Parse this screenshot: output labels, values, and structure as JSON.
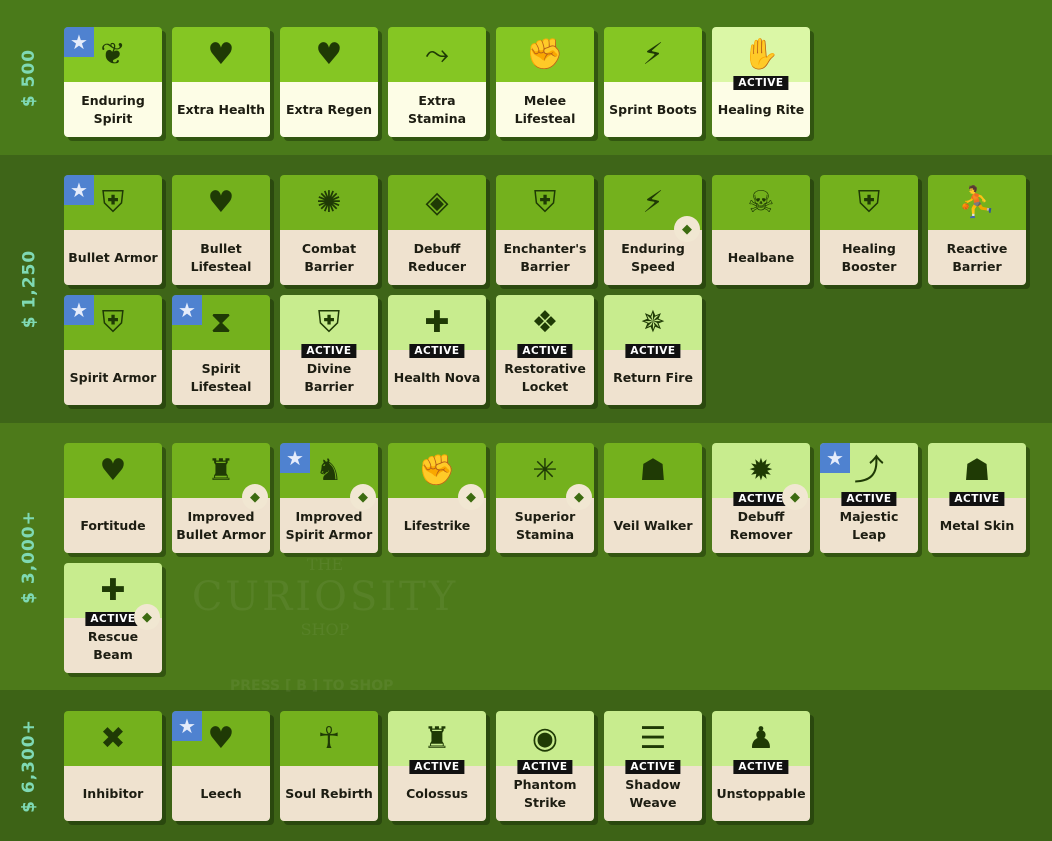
{
  "watermark": {
    "line1": "THE",
    "line2": "CURIOSITY",
    "line3": "SHOP",
    "hint": "PRESS [ B ] TO SHOP"
  },
  "active_label": "ACTIVE",
  "colors": {
    "tier_text": "#7fd9b4",
    "card_green": "#74b11d",
    "card_active": "#c8ec8e",
    "star_bg": "#4f82d0"
  },
  "tiers": [
    {
      "price": "$ 500",
      "bg": "#4a7a1a",
      "items": [
        {
          "name": "Enduring Spirit",
          "icon": "heart-wings-icon",
          "glyph": "❦",
          "star": true
        },
        {
          "name": "Extra Health",
          "icon": "heart-icon",
          "glyph": "♥"
        },
        {
          "name": "Extra Regen",
          "icon": "heart-regen-icon",
          "glyph": "♥"
        },
        {
          "name": "Extra Stamina",
          "icon": "dash-icon",
          "glyph": "⤳"
        },
        {
          "name": "Melee Lifesteal",
          "icon": "fist-icon",
          "glyph": "✊"
        },
        {
          "name": "Sprint Boots",
          "icon": "boot-icon",
          "glyph": "⚡"
        },
        {
          "name": "Healing Rite",
          "icon": "healing-hand-icon",
          "glyph": "✋",
          "active": true
        }
      ]
    },
    {
      "price": "$ 1,250",
      "bg": "#3e6518",
      "items": [
        {
          "name": "Bullet Armor",
          "icon": "bullet-shield-icon",
          "glyph": "⛨",
          "star": true
        },
        {
          "name": "Bullet Lifesteal",
          "icon": "bullet-heart-icon",
          "glyph": "♥"
        },
        {
          "name": "Combat Barrier",
          "icon": "barrier-icon",
          "glyph": "✺"
        },
        {
          "name": "Debuff Reducer",
          "icon": "diamond-arrow-icon",
          "glyph": "◈"
        },
        {
          "name": "Enchanter's Barrier",
          "icon": "lightning-shield-icon",
          "glyph": "⛨"
        },
        {
          "name": "Enduring Speed",
          "icon": "boot-icon",
          "glyph": "⚡",
          "sub": "pin-icon"
        },
        {
          "name": "Healbane",
          "icon": "skull-icon",
          "glyph": "☠"
        },
        {
          "name": "Healing Booster",
          "icon": "plus-shield-icon",
          "glyph": "⛨"
        },
        {
          "name": "Reactive Barrier",
          "icon": "runner-shield-icon",
          "glyph": "⛹"
        },
        {
          "name": "Spirit Armor",
          "icon": "spirit-shield-icon",
          "glyph": "⛨",
          "star": true
        },
        {
          "name": "Spirit Lifesteal",
          "icon": "hourglass-heart-icon",
          "glyph": "⧗",
          "star": true
        },
        {
          "name": "Divine Barrier",
          "icon": "horned-shield-icon",
          "glyph": "⛨",
          "active": true
        },
        {
          "name": "Health Nova",
          "icon": "nova-icon",
          "glyph": "✚",
          "active": true
        },
        {
          "name": "Restorative Locket",
          "icon": "locket-icon",
          "glyph": "❖",
          "active": true
        },
        {
          "name": "Return Fire",
          "icon": "bullets-spread-icon",
          "glyph": "✵",
          "active": true
        }
      ]
    },
    {
      "price": "$ 3,000+",
      "bg": "#4d7a1a",
      "items": [
        {
          "name": "Fortitude",
          "icon": "sparkle-heart-icon",
          "glyph": "♥"
        },
        {
          "name": "Improved Bullet Armor",
          "icon": "armored-figure-icon",
          "glyph": "♜",
          "sub": "bullet-shield-icon"
        },
        {
          "name": "Improved Spirit Armor",
          "icon": "spirit-figure-icon",
          "glyph": "♞",
          "star": true,
          "sub": "spirit-shield-icon"
        },
        {
          "name": "Lifestrike",
          "icon": "punch-icon",
          "glyph": "✊",
          "sub": "fist-icon"
        },
        {
          "name": "Superior Stamina",
          "icon": "stamina-icon",
          "glyph": "✳",
          "sub": "dash-icon"
        },
        {
          "name": "Veil Walker",
          "icon": "veiled-figure-icon",
          "glyph": "☗"
        },
        {
          "name": "Debuff Remover",
          "icon": "cleanse-icon",
          "glyph": "✹",
          "active": true,
          "sub": "diamond-arrow-icon"
        },
        {
          "name": "Majestic Leap",
          "icon": "leap-icon",
          "glyph": "⤴",
          "active": true,
          "star": true
        },
        {
          "name": "Metal Skin",
          "icon": "metal-figure-icon",
          "glyph": "☗",
          "active": true
        },
        {
          "name": "Rescue Beam",
          "icon": "beam-icon",
          "glyph": "✚",
          "active": true,
          "sub": "healing-hand-icon"
        }
      ]
    },
    {
      "price": "$ 6,300+",
      "bg": "#3d6316",
      "items": [
        {
          "name": "Inhibitor",
          "icon": "inhibitor-icon",
          "glyph": "✖"
        },
        {
          "name": "Leech",
          "icon": "leech-icon",
          "glyph": "♥",
          "star": true
        },
        {
          "name": "Soul Rebirth",
          "icon": "rebirth-icon",
          "glyph": "☥"
        },
        {
          "name": "Colossus",
          "icon": "colossus-icon",
          "glyph": "♜",
          "active": true
        },
        {
          "name": "Phantom Strike",
          "icon": "phantom-icon",
          "glyph": "◉",
          "active": true
        },
        {
          "name": "Shadow Weave",
          "icon": "weave-icon",
          "glyph": "☰",
          "active": true
        },
        {
          "name": "Unstoppable",
          "icon": "unstoppable-icon",
          "glyph": "♟",
          "active": true
        }
      ]
    }
  ]
}
